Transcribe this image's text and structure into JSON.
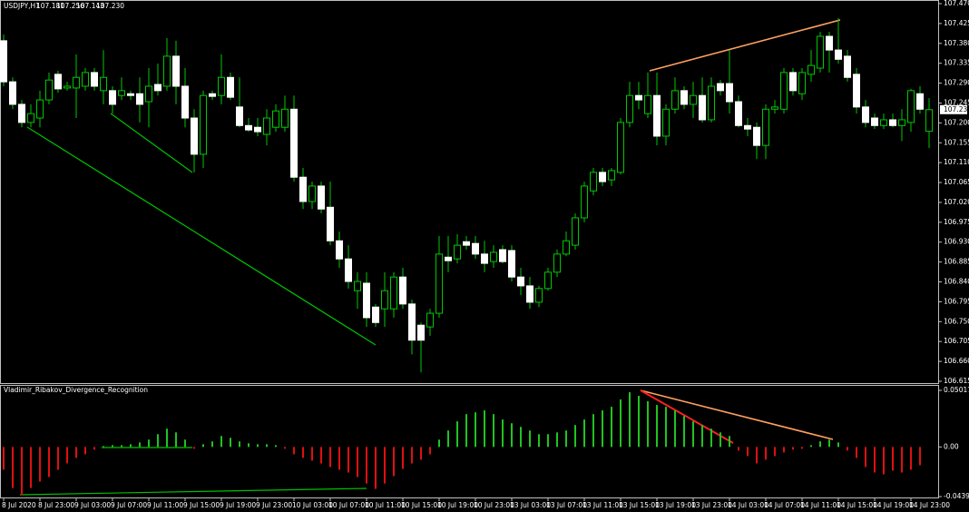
{
  "chart_data": {
    "type": "candlestick",
    "symbol": "USDJPY,H1",
    "last_bar_labels": [
      "107.181",
      "107.256",
      "107.143",
      "107.230"
    ],
    "bull_color": "#00c800",
    "bear_color": "#ffffff",
    "categories": [
      "8 Jul 2020",
      null,
      null,
      null,
      "8 Jul 23:00",
      null,
      null,
      null,
      "9 Jul 03:00",
      null,
      null,
      null,
      "9 Jul 07:00",
      null,
      null,
      null,
      "9 Jul 11:00",
      null,
      null,
      null,
      "9 Jul 15:00",
      null,
      null,
      null,
      "9 Jul 19:00",
      null,
      null,
      null,
      "9 Jul 23:00",
      null,
      null,
      null,
      "10 Jul 03:00",
      null,
      null,
      null,
      "10 Jul 07:00",
      null,
      null,
      null,
      "10 Jul 11:00",
      null,
      null,
      null,
      "10 Jul 15:00",
      null,
      null,
      null,
      "10 Jul 19:00",
      null,
      null,
      null,
      "10 Jul 23:00",
      null,
      null,
      null,
      "13 Jul 03:00",
      null,
      null,
      null,
      "13 Jul 07:00",
      null,
      null,
      null,
      "13 Jul 11:00",
      null,
      null,
      null,
      "13 Jul 15:00",
      null,
      null,
      null,
      "13 Jul 19:00",
      null,
      null,
      null,
      "13 Jul 23:00",
      null,
      null,
      null,
      "14 Jul 03:00",
      null,
      null,
      null,
      "14 Jul 07:00",
      null,
      null,
      null,
      "14 Jul 11:00",
      null,
      null,
      null,
      "14 Jul 15:00",
      null,
      null,
      null,
      "14 Jul 19:00",
      null,
      null,
      null,
      "14 Jul 23:00",
      null,
      null
    ],
    "open": [
      107.386,
      107.293,
      107.242,
      107.201,
      107.211,
      107.252,
      107.31,
      107.279,
      107.279,
      107.283,
      107.314,
      107.273,
      107.273,
      107.262,
      107.266,
      107.266,
      107.248,
      107.287,
      107.283,
      107.351,
      107.283,
      107.211,
      107.129,
      107.266,
      107.262,
      107.303,
      107.236,
      107.194,
      107.19,
      107.174,
      107.19,
      107.19,
      107.231,
      107.077,
      107.022,
      107.057,
      107.009,
      106.933,
      106.892,
      106.82,
      106.837,
      106.783,
      106.779,
      106.779,
      106.851,
      106.79,
      106.742,
      106.738,
      106.769,
      106.896,
      106.892,
      106.931,
      106.927,
      106.903,
      106.886,
      106.913,
      106.911,
      106.851,
      106.831,
      106.794,
      106.825,
      106.862,
      106.903,
      106.923,
      106.985,
      107.046,
      107.088,
      107.071,
      107.088,
      107.201,
      107.262,
      107.221,
      107.262,
      107.17,
      107.231,
      107.273,
      107.242,
      107.262,
      107.207,
      107.289,
      107.289,
      107.248,
      107.194,
      107.19,
      107.149,
      107.231,
      107.231,
      107.314,
      107.266,
      107.31,
      107.324,
      107.396,
      107.365,
      107.351,
      107.31,
      107.236,
      107.211,
      107.194,
      107.207,
      107.194,
      107.201,
      107.266,
      107.181
    ],
    "high": [
      107.4,
      107.303,
      107.252,
      107.242,
      107.273,
      107.314,
      107.318,
      107.293,
      107.355,
      107.324,
      107.324,
      107.365,
      107.283,
      107.303,
      107.273,
      107.303,
      107.324,
      107.334,
      107.392,
      107.386,
      107.324,
      107.231,
      107.273,
      107.273,
      107.355,
      107.314,
      107.303,
      107.211,
      107.211,
      107.231,
      107.242,
      107.262,
      107.262,
      107.098,
      107.067,
      107.067,
      107.067,
      106.954,
      106.923,
      106.862,
      106.862,
      106.79,
      106.862,
      106.862,
      106.872,
      106.8,
      106.748,
      106.779,
      106.944,
      106.944,
      106.948,
      106.944,
      106.944,
      106.933,
      106.923,
      106.923,
      106.923,
      106.872,
      106.851,
      106.831,
      106.872,
      106.913,
      106.954,
      106.995,
      107.067,
      107.098,
      107.098,
      107.098,
      107.211,
      107.293,
      107.293,
      107.314,
      107.314,
      107.242,
      107.303,
      107.283,
      107.293,
      107.303,
      107.303,
      107.297,
      107.365,
      107.262,
      107.211,
      107.201,
      107.242,
      107.252,
      107.324,
      107.324,
      107.324,
      107.365,
      107.406,
      107.406,
      107.437,
      107.365,
      107.324,
      107.252,
      107.221,
      107.221,
      107.221,
      107.231,
      107.277,
      107.283,
      107.256
    ],
    "low": [
      107.283,
      107.231,
      107.19,
      107.19,
      107.19,
      107.242,
      107.268,
      107.273,
      107.211,
      107.273,
      107.273,
      107.242,
      107.221,
      107.252,
      107.252,
      107.201,
      107.19,
      107.262,
      107.273,
      107.242,
      107.19,
      107.088,
      107.098,
      107.252,
      107.242,
      107.252,
      107.19,
      107.18,
      107.17,
      107.149,
      107.18,
      107.18,
      107.067,
      107.005,
      107.005,
      106.995,
      106.923,
      106.872,
      106.825,
      106.779,
      106.738,
      106.738,
      106.738,
      106.759,
      106.779,
      106.676,
      106.635,
      106.718,
      106.759,
      106.862,
      106.882,
      106.913,
      106.892,
      106.862,
      106.872,
      106.882,
      106.841,
      106.81,
      106.779,
      106.783,
      106.82,
      106.851,
      106.898,
      106.913,
      106.975,
      107.036,
      107.057,
      107.057,
      107.083,
      107.19,
      107.231,
      107.211,
      107.149,
      107.149,
      107.221,
      107.231,
      107.211,
      107.201,
      107.201,
      107.262,
      107.221,
      107.19,
      107.17,
      107.118,
      107.118,
      107.221,
      107.221,
      107.262,
      107.252,
      107.293,
      107.314,
      107.314,
      107.334,
      107.293,
      107.221,
      107.19,
      107.186,
      107.186,
      107.19,
      107.159,
      107.18,
      107.221,
      107.143
    ],
    "close": [
      107.293,
      107.242,
      107.201,
      107.221,
      107.252,
      107.297,
      107.277,
      107.283,
      107.303,
      107.314,
      107.283,
      107.303,
      107.242,
      107.273,
      107.262,
      107.242,
      107.283,
      107.273,
      107.351,
      107.283,
      107.211,
      107.129,
      107.262,
      107.26,
      107.303,
      107.258,
      107.194,
      107.184,
      107.18,
      107.211,
      107.227,
      107.231,
      107.077,
      107.022,
      107.057,
      107.005,
      106.933,
      106.892,
      106.841,
      106.841,
      106.759,
      106.748,
      106.82,
      106.851,
      106.79,
      106.708,
      106.708,
      106.769,
      106.903,
      106.888,
      106.923,
      106.923,
      106.903,
      106.882,
      106.907,
      106.886,
      106.851,
      106.831,
      106.794,
      106.825,
      106.862,
      106.903,
      106.933,
      106.985,
      107.057,
      107.088,
      107.067,
      107.092,
      107.201,
      107.262,
      107.252,
      107.262,
      107.17,
      107.231,
      107.273,
      107.242,
      107.262,
      107.207,
      107.283,
      107.273,
      107.248,
      107.194,
      107.186,
      107.149,
      107.231,
      107.236,
      107.314,
      107.273,
      107.314,
      107.33,
      107.396,
      107.365,
      107.344,
      107.303,
      107.236,
      107.201,
      107.194,
      107.207,
      107.194,
      107.207,
      107.273,
      107.231,
      107.23
    ],
    "ylim": [
      106.615,
      107.47
    ],
    "yticks": [
      {
        "value": 107.47,
        "label": "107.470"
      },
      107.425,
      {
        "value": 107.38,
        "label": "107.380"
      },
      107.335,
      {
        "value": 107.29,
        "label": "107.290"
      },
      107.245,
      {
        "value": 107.2,
        "label": "107.200"
      },
      107.155,
      {
        "value": 107.11,
        "label": "107.110"
      },
      107.065,
      {
        "value": 107.02,
        "label": "107.020"
      },
      106.975,
      {
        "value": 106.93,
        "label": "106.930"
      },
      106.885,
      {
        "value": 106.84,
        "label": "106.840"
      },
      106.795,
      {
        "value": 106.75,
        "label": "106.750"
      },
      106.705,
      {
        "value": 106.66,
        "label": "106.660"
      },
      106.615
    ],
    "current_price": {
      "value": 107.23,
      "label": "107.230"
    },
    "indicator": {
      "name": "Vladimir_Ribakov_Divergence_Recognition",
      "up_color": "#1fc41f",
      "down_color": "#e01010",
      "values": [
        -0.0202,
        -0.0364,
        -0.0429,
        -0.0364,
        -0.0307,
        -0.0267,
        -0.0202,
        -0.0146,
        -0.0097,
        -0.0065,
        -0.0024,
        0.0008,
        0.0016,
        0.0016,
        0.0024,
        0.004,
        0.0065,
        0.0113,
        0.0162,
        0.0129,
        0.0065,
        -0.0016,
        0.0024,
        0.0049,
        0.0097,
        0.0081,
        0.0049,
        0.0032,
        0.0024,
        0.0024,
        0.0016,
        -0.0016,
        -0.0065,
        -0.0097,
        -0.0121,
        -0.0146,
        -0.0178,
        -0.0202,
        -0.0227,
        -0.0267,
        -0.0324,
        -0.0372,
        -0.0324,
        -0.0259,
        -0.0194,
        -0.0146,
        -0.0113,
        -0.0065,
        0.0065,
        0.0146,
        0.0227,
        0.0291,
        0.0307,
        0.0324,
        0.0291,
        0.0243,
        0.021,
        0.0178,
        0.0146,
        0.0113,
        0.0113,
        0.0129,
        0.0146,
        0.0194,
        0.0243,
        0.0291,
        0.0324,
        0.0356,
        0.0421,
        0.0485,
        0.0453,
        0.0405,
        0.0372,
        0.0356,
        0.0324,
        0.0275,
        0.0227,
        0.0194,
        0.0162,
        0.0129,
        0.0097,
        -0.0032,
        -0.0081,
        -0.0146,
        -0.0113,
        -0.0081,
        -0.0049,
        -0.0024,
        -0.0016,
        0.0016,
        0.0049,
        0.0065,
        0.004,
        -0.0032,
        -0.0097,
        -0.0178,
        -0.0227,
        -0.0243,
        -0.021,
        -0.0227,
        -0.0202,
        -0.0162,
        null
      ],
      "y2lim": [
        -0.043993,
        0.050172
      ],
      "y2ticks": [
        0.050172,
        {
          "value": 0,
          "label": "0.00"
        },
        -0.043993
      ]
    }
  }
}
